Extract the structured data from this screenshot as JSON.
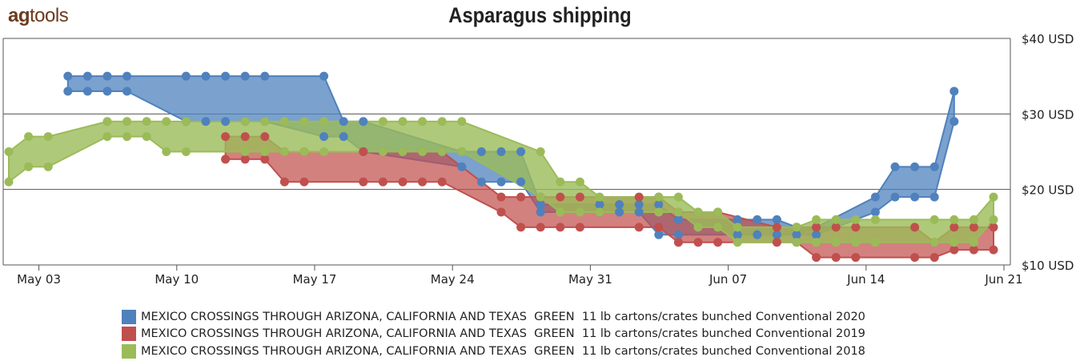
{
  "logo": {
    "text_bold": "ag",
    "text_rest": "tools"
  },
  "chart_data": {
    "type": "area",
    "title": "Asparagus shipping",
    "x_ticks": [
      "May 03",
      "May 10",
      "May 17",
      "May 24",
      "May 31",
      "Jun 07",
      "Jun 14",
      "Jun 21"
    ],
    "y_ticks": [
      "$10 USD",
      "$20 USD",
      "$30 USD",
      "$40 USD"
    ],
    "ylim": [
      10,
      40
    ],
    "xlim": [
      "2020-05-02",
      "2020-06-21"
    ],
    "grid": true,
    "legend_position": "bottom",
    "series": [
      {
        "name": "MEXICO CROSSINGS THROUGH ARIZONA, CALIFORNIA AND TEXAS  GREEN  11 lb cartons/crates bunched Conventional 2020",
        "color": "#4f81bd",
        "fill": "rgba(79,129,189,0.75)",
        "dates": [
          "2020-05-05",
          "2020-05-06",
          "2020-05-07",
          "2020-05-08",
          "2020-05-11",
          "2020-05-12",
          "2020-05-13",
          "2020-05-14",
          "2020-05-15",
          "2020-05-18",
          "2020-05-19",
          "2020-05-20",
          "2020-05-25",
          "2020-05-26",
          "2020-05-27",
          "2020-05-28",
          "2020-05-29",
          "2020-06-01",
          "2020-06-02",
          "2020-06-03",
          "2020-06-04",
          "2020-06-05",
          "2020-06-08",
          "2020-06-09",
          "2020-06-10",
          "2020-06-11",
          "2020-06-12",
          "2020-06-15",
          "2020-06-16",
          "2020-06-17",
          "2020-06-18",
          "2020-06-19"
        ],
        "high": [
          35,
          35,
          35,
          35,
          35,
          35,
          35,
          35,
          35,
          35,
          29,
          29,
          25,
          25,
          25,
          25,
          18,
          18,
          18,
          18,
          18,
          16,
          16,
          16,
          16,
          15,
          15,
          19,
          23,
          23,
          23,
          33
        ],
        "low": [
          33,
          33,
          33,
          33,
          29,
          29,
          29,
          29,
          29,
          27,
          27,
          25,
          23,
          21,
          21,
          21,
          17,
          17,
          17,
          17,
          14,
          14,
          14,
          14,
          14,
          14,
          14,
          17,
          19,
          19,
          19,
          29
        ]
      },
      {
        "name": "MEXICO CROSSINGS THROUGH ARIZONA, CALIFORNIA AND TEXAS  GREEN  11 lb cartons/crates bunched Conventional 2019",
        "color": "#c0504d",
        "fill": "rgba(192,80,77,0.72)",
        "dates": [
          "2019-05-13",
          "2019-05-14",
          "2019-05-15",
          "2019-05-16",
          "2019-05-17",
          "2019-05-20",
          "2019-05-21",
          "2019-05-22",
          "2019-05-23",
          "2019-05-24",
          "2019-05-27",
          "2019-05-28",
          "2019-05-29",
          "2019-05-30",
          "2019-05-31",
          "2019-06-03",
          "2019-06-04",
          "2019-06-05",
          "2019-06-06",
          "2019-06-07",
          "2019-06-10",
          "2019-06-11",
          "2019-06-12",
          "2019-06-13",
          "2019-06-14",
          "2019-06-17",
          "2019-06-18",
          "2019-06-19",
          "2019-06-20",
          "2019-06-21"
        ],
        "high": [
          27,
          27,
          27,
          25,
          25,
          25,
          25,
          25,
          25,
          25,
          19,
          19,
          19,
          19,
          19,
          19,
          19,
          17,
          17,
          17,
          15,
          15,
          15,
          15,
          15,
          15,
          13,
          15,
          15,
          15
        ],
        "low": [
          24,
          24,
          24,
          21,
          21,
          21,
          21,
          21,
          21,
          21,
          17,
          15,
          15,
          15,
          15,
          15,
          15,
          13,
          13,
          13,
          13,
          13,
          11,
          11,
          11,
          11,
          11,
          12,
          12,
          12
        ]
      },
      {
        "name": "MEXICO CROSSINGS THROUGH ARIZONA, CALIFORNIA AND TEXAS  GREEN  11 lb cartons/crates bunched Conventional 2018",
        "color": "#9bbb59",
        "fill": "rgba(155,187,89,0.8)",
        "dates": [
          "2018-05-02",
          "2018-05-03",
          "2018-05-04",
          "2018-05-07",
          "2018-05-08",
          "2018-05-09",
          "2018-05-10",
          "2018-05-11",
          "2018-05-14",
          "2018-05-15",
          "2018-05-16",
          "2018-05-17",
          "2018-05-18",
          "2018-05-21",
          "2018-05-22",
          "2018-05-23",
          "2018-05-24",
          "2018-05-25",
          "2018-05-29",
          "2018-05-30",
          "2018-05-31",
          "2018-06-01",
          "2018-06-04",
          "2018-06-05",
          "2018-06-06",
          "2018-06-07",
          "2018-06-08",
          "2018-06-11",
          "2018-06-12",
          "2018-06-13",
          "2018-06-14",
          "2018-06-15",
          "2018-06-18",
          "2018-06-19",
          "2018-06-20",
          "2018-06-21"
        ],
        "high": [
          25,
          27,
          27,
          29,
          29,
          29,
          29,
          29,
          29,
          29,
          29,
          29,
          29,
          29,
          29,
          29,
          29,
          29,
          25,
          21,
          21,
          19,
          19,
          19,
          17,
          17,
          15,
          15,
          16,
          16,
          16,
          16,
          16,
          16,
          16,
          19
        ],
        "low": [
          21,
          23,
          23,
          27,
          27,
          27,
          25,
          25,
          25,
          25,
          25,
          25,
          25,
          25,
          25,
          25,
          25,
          25,
          19,
          17,
          17,
          17,
          17,
          17,
          15,
          15,
          13,
          13,
          13,
          13,
          13,
          13,
          13,
          13,
          13,
          16
        ]
      }
    ]
  }
}
